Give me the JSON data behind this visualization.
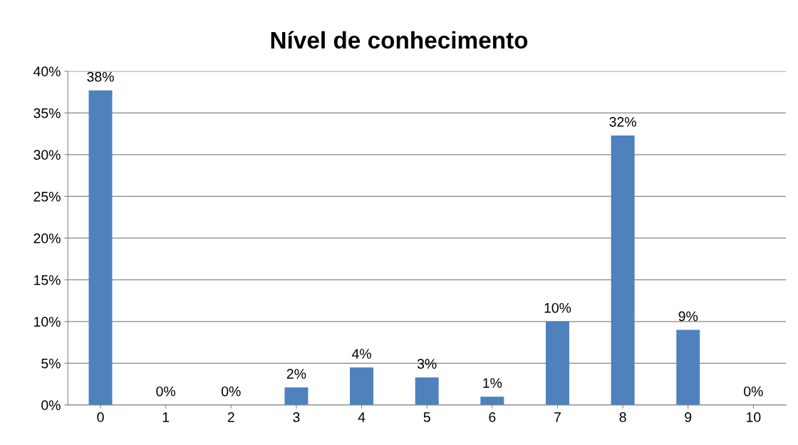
{
  "chart_data": {
    "type": "bar",
    "title": "Nível de conhecimento",
    "categories": [
      "0",
      "1",
      "2",
      "3",
      "4",
      "5",
      "6",
      "7",
      "8",
      "9",
      "10"
    ],
    "values": [
      37.7,
      0,
      0,
      2.1,
      4.5,
      3.3,
      1.0,
      10.0,
      32.3,
      9.0,
      0
    ],
    "value_labels": [
      "38%",
      "0%",
      "0%",
      "2%",
      "4%",
      "3%",
      "1%",
      "10%",
      "32%",
      "9%",
      "0%"
    ],
    "color": "#4f81bd",
    "ylim": [
      0,
      40
    ],
    "yticks": [
      {
        "value": 0,
        "label": "0%"
      },
      {
        "value": 5,
        "label": "5%"
      },
      {
        "value": 10,
        "label": "10%"
      },
      {
        "value": 15,
        "label": "15%"
      },
      {
        "value": 20,
        "label": "20%"
      },
      {
        "value": 25,
        "label": "25%"
      },
      {
        "value": 30,
        "label": "30%"
      },
      {
        "value": 35,
        "label": "35%"
      },
      {
        "value": 40,
        "label": "40%"
      }
    ],
    "grid": "y"
  }
}
